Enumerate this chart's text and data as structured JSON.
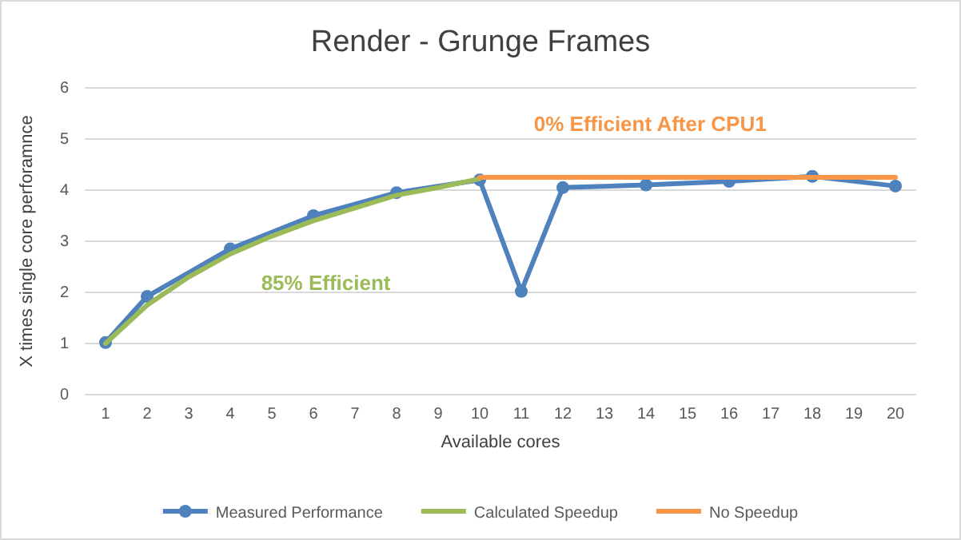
{
  "chart_data": {
    "type": "line",
    "title": "Render - Grunge Frames",
    "xlabel": "Available cores",
    "ylabel": "X times single core perforamnce",
    "annotations": [
      "85% Efficient",
      "0% Efficient After CPU1"
    ],
    "series": [
      {
        "name": "Measured Performance",
        "color": "#4f81bd",
        "marker": "circle",
        "x": [
          1,
          2,
          4,
          6,
          8,
          10,
          11,
          12,
          14,
          16,
          18,
          20
        ],
        "values": [
          1.02,
          1.92,
          2.85,
          3.5,
          3.95,
          4.2,
          2.02,
          4.05,
          4.1,
          4.17,
          4.27,
          4.08
        ]
      },
      {
        "name": "Calculated Speedup",
        "color": "#9bbb59",
        "marker": "none",
        "x": [
          1,
          2,
          3,
          4,
          5,
          6,
          7,
          8,
          9,
          10
        ],
        "values": [
          1,
          1.75,
          2.3,
          2.75,
          3.1,
          3.4,
          3.65,
          3.9,
          4.05,
          4.22
        ]
      },
      {
        "name": "No Speedup",
        "color": "#f79646",
        "marker": "none",
        "x": [
          10,
          20
        ],
        "values": [
          4.25,
          4.25
        ]
      }
    ],
    "xlim": [
      0.5,
      20.5
    ],
    "xticks": [
      1,
      2,
      3,
      4,
      5,
      6,
      7,
      8,
      9,
      10,
      11,
      12,
      13,
      14,
      15,
      16,
      17,
      18,
      19,
      20
    ],
    "ylim": [
      0,
      6
    ],
    "yticks": [
      0,
      1,
      2,
      3,
      4,
      5,
      6
    ],
    "grid": "y",
    "legend": "bottom",
    "line_style": "solid"
  }
}
